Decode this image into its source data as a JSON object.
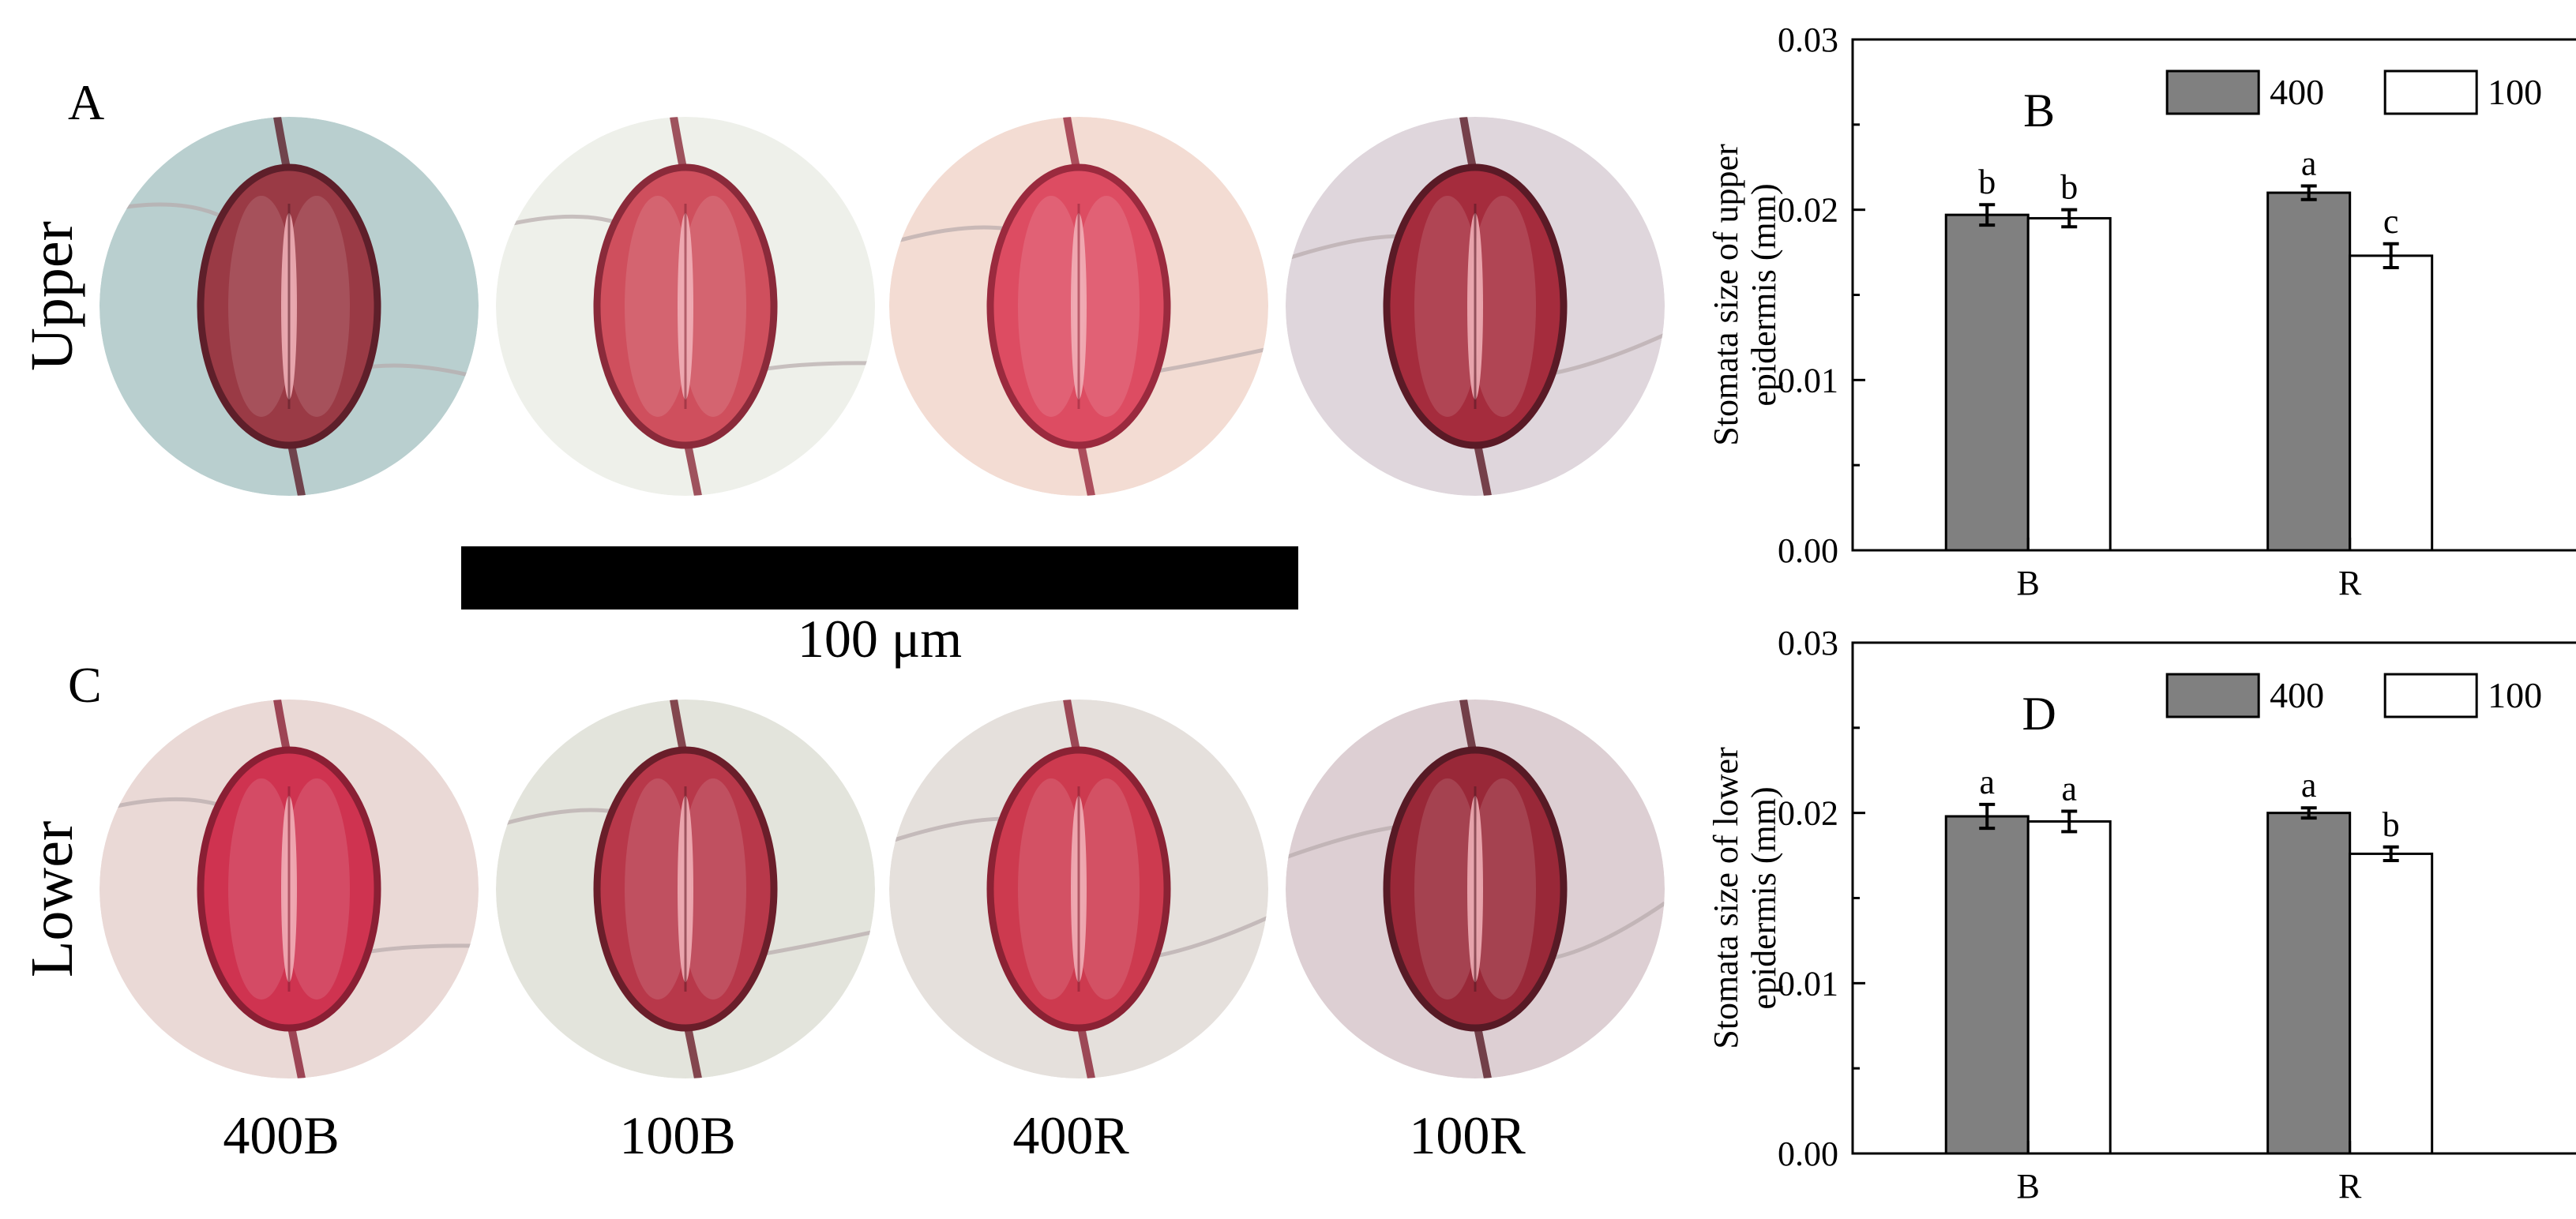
{
  "panel_letters": {
    "A": "A",
    "C": "C"
  },
  "row_labels": {
    "upper": "Upper",
    "lower": "Lower"
  },
  "samples": [
    "400B",
    "100B",
    "400R",
    "100R"
  ],
  "scale_bar": {
    "label": "100 μm"
  },
  "micrographs": {
    "upper": [
      {
        "bg": "#b9cfcf",
        "cell": "#9a3a45",
        "rim": "#5e1f2a"
      },
      {
        "bg": "#eef0ea",
        "cell": "#cf4f5d",
        "rim": "#8a2a3a"
      },
      {
        "bg": "#f3dcd3",
        "cell": "#dd4c62",
        "rim": "#9a2a3e"
      },
      {
        "bg": "#dfd6dc",
        "cell": "#a52c3d",
        "rim": "#5a1a26"
      }
    ],
    "lower": [
      {
        "bg": "#ead9d6",
        "cell": "#cf3350",
        "rim": "#8a1f34"
      },
      {
        "bg": "#e3e4dc",
        "cell": "#b8384a",
        "rim": "#6a1e2a"
      },
      {
        "bg": "#e5e0dc",
        "cell": "#cd3a4f",
        "rim": "#8a2234"
      },
      {
        "bg": "#ddcfd3",
        "cell": "#992838",
        "rim": "#571a25"
      }
    ]
  },
  "chart_data": [
    {
      "type": "bar",
      "panel": "B",
      "title": "",
      "categories": [
        "B",
        "R"
      ],
      "series": [
        {
          "name": "400",
          "color": "#808080",
          "values": [
            0.0197,
            0.021
          ],
          "errors": [
            0.0006,
            0.0004
          ],
          "letters": [
            "b",
            "a"
          ]
        },
        {
          "name": "100",
          "color": "#ffffff",
          "values": [
            0.0195,
            0.0173
          ],
          "errors": [
            0.0005,
            0.0007
          ],
          "letters": [
            "b",
            "c"
          ]
        }
      ],
      "ylabel_lines": [
        "Stomata size of upper",
        "epidermis (mm)"
      ],
      "ylim": [
        0,
        0.03
      ],
      "yticks": [
        "0.00",
        "0.01",
        "0.02",
        "0.03"
      ],
      "legend": "top-right"
    },
    {
      "type": "bar",
      "panel": "D",
      "title": "",
      "categories": [
        "B",
        "R"
      ],
      "series": [
        {
          "name": "400",
          "color": "#808080",
          "values": [
            0.0198,
            0.02
          ],
          "errors": [
            0.0007,
            0.0003
          ],
          "letters": [
            "a",
            "a"
          ]
        },
        {
          "name": "100",
          "color": "#ffffff",
          "values": [
            0.0195,
            0.0176
          ],
          "errors": [
            0.0006,
            0.0004
          ],
          "letters": [
            "a",
            "b"
          ]
        }
      ],
      "ylabel_lines": [
        "Stomata size of lower",
        "epidermis (mm)"
      ],
      "ylim": [
        0,
        0.03
      ],
      "yticks": [
        "0.00",
        "0.01",
        "0.02",
        "0.03"
      ],
      "legend": "top-right"
    }
  ]
}
